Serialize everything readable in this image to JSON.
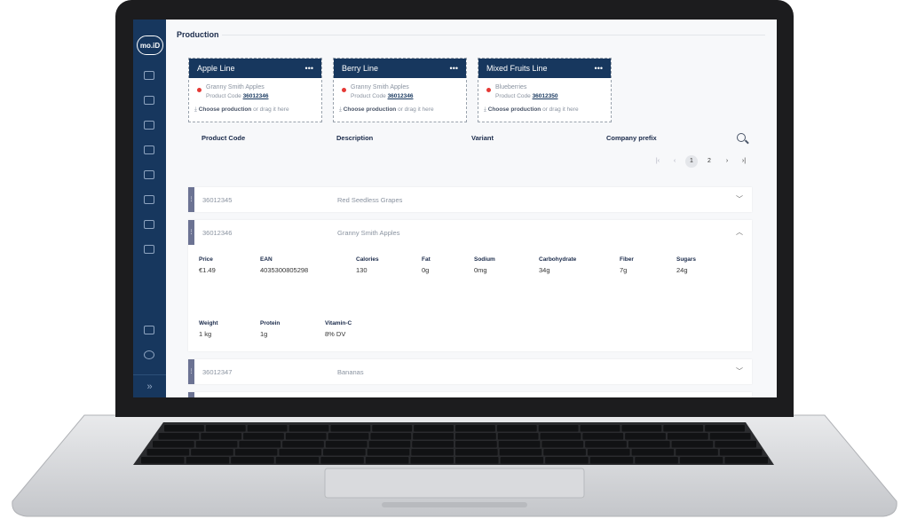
{
  "app": {
    "logo": "mo.iD",
    "page_title": "Production"
  },
  "sidebar": {
    "icons": [
      "dashboard-icon",
      "production-icon",
      "database-icon",
      "box-icon",
      "scan-icon",
      "printer-icon",
      "network-icon",
      "settings-sliders-icon"
    ],
    "bottom_icons": [
      "logout-icon",
      "user-icon"
    ],
    "expand_label": "»"
  },
  "lines": [
    {
      "name": "Apple Line",
      "menu": "•••",
      "product": "Granny Smith Apples",
      "code_label": "Product Code",
      "code": "36012346",
      "choose": "Choose production",
      "drag": "or drag it here"
    },
    {
      "name": "Berry Line",
      "menu": "•••",
      "product": "Granny Smith Apples",
      "code_label": "Product Code",
      "code": "36012346",
      "choose": "Choose production",
      "drag": "or drag it here"
    },
    {
      "name": "Mixed Fruits Line",
      "menu": "•••",
      "product": "Blueberries",
      "code_label": "Product Code",
      "code": "36012350",
      "choose": "Choose production",
      "drag": "or drag it here"
    }
  ],
  "table": {
    "columns": [
      "Product Code",
      "Description",
      "Variant",
      "Company prefix"
    ]
  },
  "pagination": {
    "first": "|‹",
    "prev": "‹",
    "pages": [
      "1",
      "2"
    ],
    "current": "1",
    "next": "›",
    "last": "›|"
  },
  "rows": [
    {
      "code": "36012345",
      "description": "Red Seedless Grapes",
      "expanded": false
    },
    {
      "code": "36012346",
      "description": "Granny Smith Apples",
      "expanded": true,
      "fields": [
        [
          "Price",
          "€1.49"
        ],
        [
          "EAN",
          "4035300805298"
        ],
        [
          "Calories",
          "130"
        ],
        [
          "Fat",
          "0g"
        ],
        [
          "Sodium",
          "0mg"
        ],
        [
          "Carbohydrate",
          "34g"
        ],
        [
          "Fiber",
          "7g"
        ],
        [
          "Sugars",
          "24g"
        ],
        [
          "Weight",
          "1 kg"
        ],
        [
          "Protein",
          "1g"
        ],
        [
          "Vitamin-C",
          "8% DV"
        ]
      ]
    },
    {
      "code": "36012347",
      "description": "Bananas",
      "expanded": false
    }
  ],
  "colors": {
    "sidebar": "#17375e",
    "status_dot": "#e53935",
    "handle": "#6c7393"
  }
}
